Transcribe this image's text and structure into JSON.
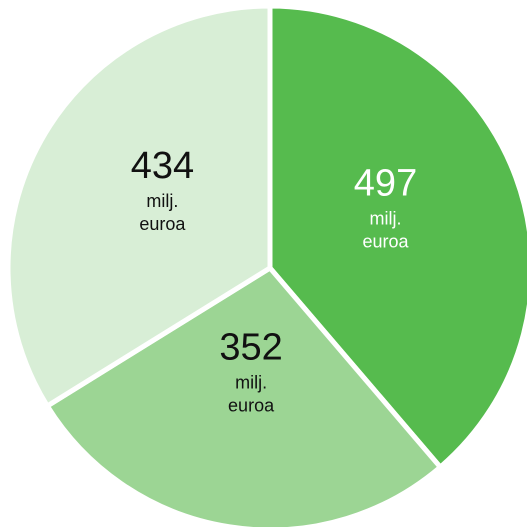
{
  "chart_data": {
    "type": "pie",
    "slices": [
      {
        "value": 497,
        "value_label": "497",
        "unit_line1": "milj.",
        "unit_line2": "euroa",
        "color": "#56bb4e",
        "text_color": "#ffffff"
      },
      {
        "value": 352,
        "value_label": "352",
        "unit_line1": "milj.",
        "unit_line2": "euroa",
        "color": "#9cd594",
        "text_color": "#111111"
      },
      {
        "value": 434,
        "value_label": "434",
        "unit_line1": "milj.",
        "unit_line2": "euroa",
        "color": "#d8eed6",
        "text_color": "#111111"
      }
    ]
  }
}
